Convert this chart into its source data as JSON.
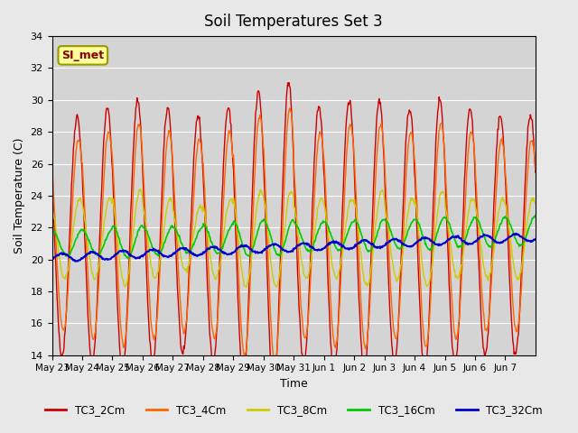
{
  "title": "Soil Temperatures Set 3",
  "xlabel": "Time",
  "ylabel": "Soil Temperature (C)",
  "ylim": [
    14,
    34
  ],
  "yticks": [
    14,
    16,
    18,
    20,
    22,
    24,
    26,
    28,
    30,
    32,
    34
  ],
  "annotation": "SI_met",
  "bg_color": "#e8e8e8",
  "plot_bg_color": "#d4d4d4",
  "series_colors": {
    "TC3_2Cm": "#cc0000",
    "TC3_4Cm": "#ff6600",
    "TC3_8Cm": "#cccc00",
    "TC3_16Cm": "#00cc00",
    "TC3_32Cm": "#0000cc"
  },
  "x_tick_labels": [
    "May 23",
    "May 24",
    "May 25",
    "May 26",
    "May 27",
    "May 28",
    "May 29",
    "May 30",
    "May 31",
    "Jun 1",
    "Jun 2",
    "Jun 3",
    "Jun 4",
    "Jun 5",
    "Jun 6",
    "Jun 7"
  ],
  "num_days": 16,
  "points_per_day": 48
}
